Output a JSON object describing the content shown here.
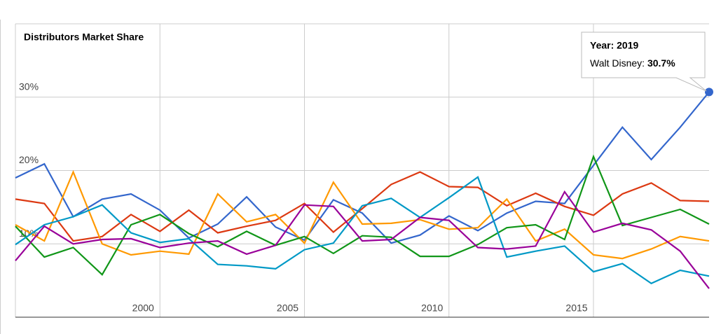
{
  "chart_data": {
    "type": "line",
    "title": "Distributors Market Share",
    "x": [
      1995,
      1996,
      1997,
      1998,
      1999,
      2000,
      2001,
      2002,
      2003,
      2004,
      2005,
      2006,
      2007,
      2008,
      2009,
      2010,
      2011,
      2012,
      2013,
      2014,
      2015,
      2016,
      2017,
      2018,
      2019
    ],
    "xlim": [
      1995,
      2019
    ],
    "xticks": [
      2000,
      2005,
      2010,
      2015
    ],
    "ylim": [
      0,
      40
    ],
    "yticks": [
      {
        "value": 10,
        "label": "10%"
      },
      {
        "value": 20,
        "label": "20%"
      },
      {
        "value": 30,
        "label": "30%"
      }
    ],
    "grid": true,
    "series": [
      {
        "color": "#3366cc",
        "values": [
          19.0,
          20.9,
          13.7,
          16.1,
          16.8,
          14.6,
          10.8,
          12.7,
          16.4,
          12.3,
          10.5,
          16.0,
          14.2,
          10.1,
          11.2,
          13.8,
          11.8,
          14.2,
          15.8,
          15.5,
          20.7,
          25.9,
          21.5,
          25.9,
          30.7
        ]
      },
      {
        "color": "#dc3912",
        "values": [
          16.1,
          15.5,
          10.4,
          11.0,
          14.0,
          11.7,
          14.6,
          11.5,
          12.4,
          13.2,
          15.5,
          11.6,
          14.8,
          18.1,
          19.8,
          17.8,
          17.7,
          15.2,
          16.9,
          15.1,
          13.9,
          16.8,
          18.3,
          15.9,
          15.8
        ]
      },
      {
        "color": "#ff9900",
        "values": [
          12.6,
          10.4,
          19.8,
          10.0,
          8.5,
          9.0,
          8.6,
          16.8,
          13.0,
          14.0,
          10.1,
          18.4,
          12.7,
          12.8,
          13.3,
          12.0,
          12.2,
          16.1,
          10.4,
          12.0,
          8.5,
          8.0,
          9.3,
          11.0,
          10.4
        ]
      },
      {
        "color": "#109618",
        "values": [
          12.4,
          8.2,
          9.5,
          5.8,
          12.6,
          14.0,
          11.4,
          9.6,
          11.7,
          9.8,
          11.0,
          8.7,
          11.1,
          10.9,
          8.3,
          8.3,
          9.9,
          12.2,
          12.6,
          10.6,
          21.9,
          12.5,
          13.6,
          14.7,
          12.7
        ]
      },
      {
        "color": "#0099c6",
        "values": [
          9.9,
          12.6,
          13.7,
          15.3,
          11.5,
          10.2,
          10.7,
          7.2,
          7.0,
          6.6,
          9.2,
          10.1,
          15.2,
          16.2,
          13.6,
          16.3,
          19.1,
          8.2,
          9.0,
          9.7,
          6.2,
          7.3,
          4.6,
          6.4,
          5.6
        ]
      },
      {
        "color": "#990099",
        "values": [
          7.7,
          12.4,
          10.0,
          10.6,
          10.7,
          9.5,
          10.1,
          10.4,
          8.6,
          9.8,
          15.3,
          15.1,
          10.4,
          10.6,
          13.6,
          13.2,
          9.5,
          9.3,
          9.7,
          17.1,
          11.6,
          12.8,
          11.9,
          9.0,
          3.9
        ]
      }
    ],
    "tooltip": {
      "title": "Year: 2019",
      "label": "Walt Disney:",
      "value_label": "30.7%"
    }
  }
}
